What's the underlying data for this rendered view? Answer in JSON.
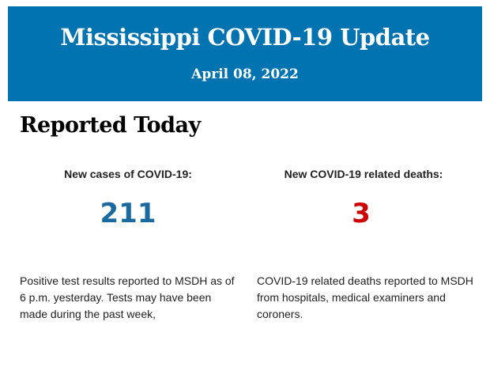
{
  "header": {
    "title": "Mississippi COVID-19 Update",
    "date": "April 08, 2022",
    "background_color": "#0073b0"
  },
  "section": {
    "heading": "Reported Today"
  },
  "stats": [
    {
      "label": "New cases of COVID-19:",
      "value": "211",
      "color": "#1a6aa0",
      "description": "Positive test results reported to MSDH as of 6 p.m. yesterday. Tests may have been made during the past week,"
    },
    {
      "label": "New COVID-19 related deaths:",
      "value": "3",
      "color": "#cc0000",
      "description": "COVID-19 related deaths reported to MSDH from hospitals, medical examiners and coroners."
    }
  ]
}
